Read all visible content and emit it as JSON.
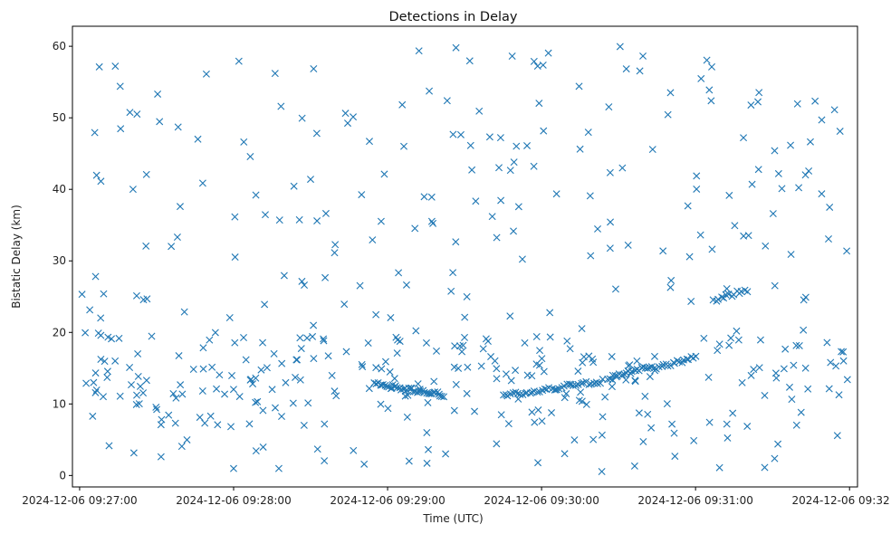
{
  "chart_data": {
    "type": "scatter",
    "title": "Detections in Delay",
    "xlabel": "Time (UTC)",
    "ylabel": "Bistatic Delay (km)",
    "x_unit": "seconds",
    "x_ticks": [
      {
        "t": 0,
        "label": "2024-12-06 09:27:00"
      },
      {
        "t": 60,
        "label": "2024-12-06 09:28:00"
      },
      {
        "t": 120,
        "label": "2024-12-06 09:29:00"
      },
      {
        "t": 180,
        "label": "2024-12-06 09:30:00"
      },
      {
        "t": 240,
        "label": "2024-12-06 09:31:00"
      },
      {
        "t": 300,
        "label": "2024-12-06 09:32:00"
      }
    ],
    "y_ticks": [
      0,
      10,
      20,
      30,
      40,
      50,
      60
    ],
    "xlim": [
      -2.8,
      303.1
    ],
    "ylim": [
      -1.6,
      62.8
    ],
    "marker": "x",
    "marker_color": "#1f77b4",
    "grid": false,
    "legend": "none",
    "tracks": [
      {
        "t_start": 115,
        "t_end": 142,
        "y_start": 12.8,
        "y_end": 11.3,
        "count": 40
      },
      {
        "t_start": 165,
        "t_end": 204,
        "y_start": 11.2,
        "y_end": 13.2,
        "count": 42
      },
      {
        "t_start": 206,
        "t_end": 224,
        "y_start": 13.6,
        "y_end": 15.3,
        "count": 22
      },
      {
        "t_start": 225,
        "t_end": 240,
        "y_start": 15.1,
        "y_end": 16.6,
        "count": 18
      },
      {
        "t_start": 247,
        "t_end": 260,
        "y_start": 24.4,
        "y_end": 26.0,
        "count": 14
      }
    ],
    "clutter": {
      "count": 470,
      "t_min": 0,
      "t_max": 300,
      "y_min": 0.5,
      "y_max": 60
    }
  }
}
